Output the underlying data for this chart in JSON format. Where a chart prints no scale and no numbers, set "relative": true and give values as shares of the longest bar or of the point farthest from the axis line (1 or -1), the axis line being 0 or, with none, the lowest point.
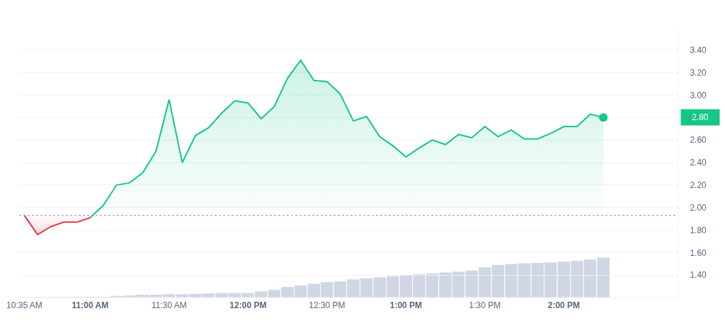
{
  "chart_data": [
    {
      "type": "area",
      "series": [
        {
          "color": "#ea3943",
          "x": [
            10.5833,
            10.6667,
            10.75,
            10.8333,
            10.9167,
            11
          ],
          "values": [
            1.93,
            1.76,
            1.83,
            1.87,
            1.87,
            1.91
          ]
        },
        {
          "color": "#16c784",
          "x": [
            11,
            11.0833,
            11.1667,
            11.25,
            11.3333,
            11.4167,
            11.5,
            11.5833,
            11.6667,
            11.75,
            11.8333,
            11.9167,
            12,
            12.0833,
            12.1667,
            12.25,
            12.3333,
            12.4167,
            12.5,
            12.5833,
            12.6667,
            12.75,
            12.8333,
            12.9167,
            13,
            13.0833,
            13.1667,
            13.25,
            13.3333,
            13.4167,
            13.5,
            13.5833,
            13.6667,
            13.75,
            13.8333,
            13.9167,
            14,
            14.0833,
            14.1667,
            14.25
          ],
          "values": [
            1.91,
            2.02,
            2.2,
            2.22,
            2.31,
            2.5,
            2.96,
            2.4,
            2.64,
            2.71,
            2.84,
            2.95,
            2.93,
            2.79,
            2.9,
            3.15,
            3.31,
            3.13,
            3.12,
            3.01,
            2.77,
            2.81,
            2.63,
            2.55,
            2.45,
            2.53,
            2.6,
            2.56,
            2.65,
            2.62,
            2.72,
            2.63,
            2.69,
            2.61,
            2.61,
            2.66,
            2.72,
            2.72,
            2.83,
            2.8
          ]
        }
      ],
      "xlim": [
        10.55,
        14.72
      ],
      "xticks": [
        {
          "value": 10.5833,
          "label": "10:35 AM"
        },
        {
          "value": 11,
          "label": "11:00 AM"
        },
        {
          "value": 11.5,
          "label": "11:30 AM"
        },
        {
          "value": 12,
          "label": "12:00 PM"
        },
        {
          "value": 12.5,
          "label": "12:30 PM"
        },
        {
          "value": 13,
          "label": "1:00 PM"
        },
        {
          "value": 13.5,
          "label": "1:30 PM"
        },
        {
          "value": 14,
          "label": "2:00 PM"
        }
      ],
      "ylim": [
        1.2,
        3.6
      ],
      "yticks": [
        {
          "value": 1.4,
          "label": "1.40"
        },
        {
          "value": 1.6,
          "label": "1.60"
        },
        {
          "value": 1.8,
          "label": "1.80"
        },
        {
          "value": 2,
          "label": "2.00"
        },
        {
          "value": 2.2,
          "label": "2.20"
        },
        {
          "value": 2.4,
          "label": "2.40"
        },
        {
          "value": 2.6,
          "label": "2.60"
        },
        {
          "value": 2.8,
          "label": null
        },
        {
          "value": 3,
          "label": "3.00"
        },
        {
          "value": 3.2,
          "label": "3.20"
        },
        {
          "value": 3.4,
          "label": "3.40"
        }
      ],
      "grid": "y",
      "ref_lines": [
        {
          "axis": "y",
          "value": 1.93,
          "color": "#8a8f98",
          "line_style": "dotted"
        }
      ],
      "annotations": [
        "2.80"
      ]
    },
    {
      "type": "bar",
      "relative": true,
      "color": "#cfd6e4",
      "x": [
        10.5833,
        10.6667,
        10.75,
        10.8333,
        10.9167,
        11,
        11.0833,
        11.1667,
        11.25,
        11.3333,
        11.4167,
        11.5,
        11.5833,
        11.6667,
        11.75,
        11.8333,
        11.9167,
        12,
        12.0833,
        12.1667,
        12.25,
        12.3333,
        12.4167,
        12.5,
        12.5833,
        12.6667,
        12.75,
        12.8333,
        12.9167,
        13,
        13.0833,
        13.1667,
        13.25,
        13.3333,
        13.4167,
        13.5,
        13.5833,
        13.6667,
        13.75,
        13.8333,
        13.9167,
        14,
        14.0833,
        14.1667,
        14.25
      ],
      "xlim": [
        10.55,
        14.72
      ],
      "values": [
        0.02,
        0.02,
        0.02,
        0.03,
        0.03,
        0.03,
        0.03,
        0.05,
        0.06,
        0.08,
        0.08,
        0.09,
        0.09,
        0.1,
        0.11,
        0.12,
        0.12,
        0.12,
        0.16,
        0.2,
        0.27,
        0.31,
        0.35,
        0.39,
        0.41,
        0.46,
        0.49,
        0.51,
        0.54,
        0.56,
        0.59,
        0.61,
        0.63,
        0.65,
        0.68,
        0.76,
        0.82,
        0.84,
        0.86,
        0.87,
        0.88,
        0.9,
        0.92,
        0.95,
        1
      ]
    }
  ]
}
